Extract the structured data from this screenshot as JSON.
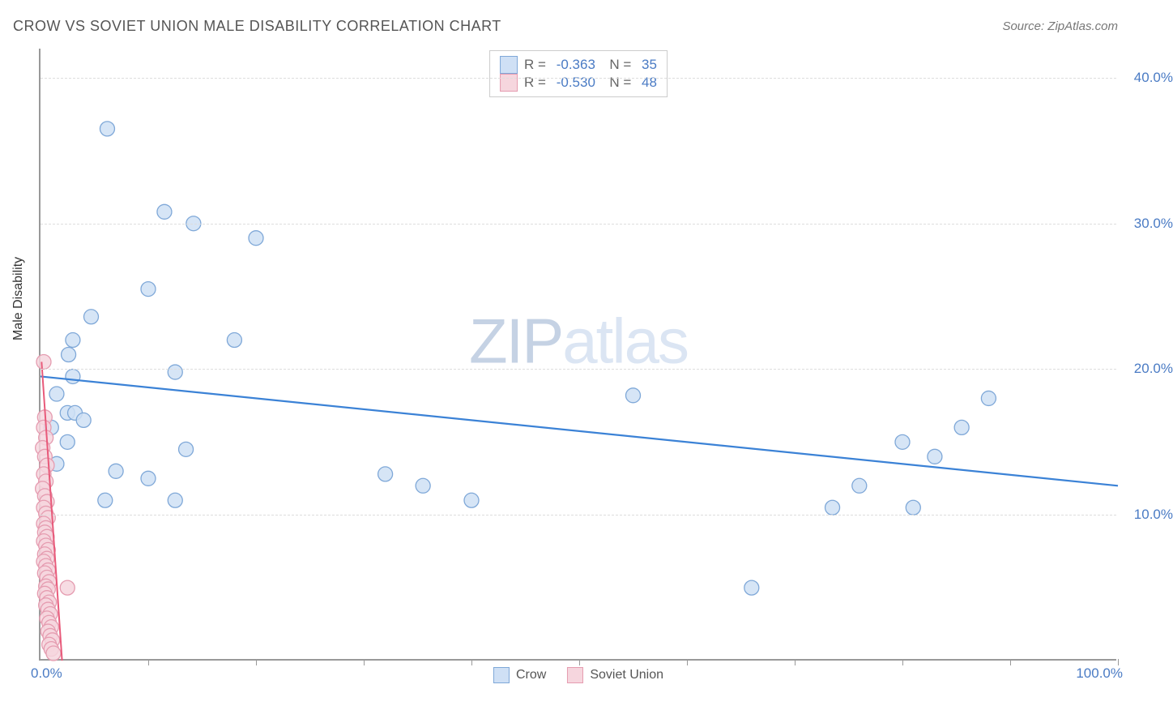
{
  "title": "CROW VS SOVIET UNION MALE DISABILITY CORRELATION CHART",
  "source": "Source: ZipAtlas.com",
  "watermark": {
    "left": "ZIP",
    "right": "atlas"
  },
  "ylabel": "Male Disability",
  "chart": {
    "type": "scatter",
    "xlim": [
      0,
      100
    ],
    "ylim": [
      0,
      42
    ],
    "yticks": [
      {
        "v": 10,
        "label": "10.0%"
      },
      {
        "v": 20,
        "label": "20.0%"
      },
      {
        "v": 30,
        "label": "30.0%"
      },
      {
        "v": 40,
        "label": "40.0%"
      }
    ],
    "xticks": [
      10,
      20,
      30,
      40,
      50,
      60,
      70,
      80,
      90,
      100
    ],
    "xlabel_min": "0.0%",
    "xlabel_max": "100.0%",
    "background_color": "#ffffff",
    "grid_color": "#dddddd",
    "series": [
      {
        "name": "Crow",
        "marker_fill": "#cfe0f5",
        "marker_stroke": "#7fa8d8",
        "marker_radius": 9,
        "line_color": "#3b82d6",
        "line_width": 2.2,
        "trend": {
          "x1": 0,
          "y1": 19.5,
          "x2": 100,
          "y2": 12.0
        },
        "R": "-0.363",
        "N": "35",
        "points": [
          [
            6.2,
            36.5
          ],
          [
            11.5,
            30.8
          ],
          [
            14.2,
            30.0
          ],
          [
            20.0,
            29.0
          ],
          [
            10.0,
            25.5
          ],
          [
            4.7,
            23.6
          ],
          [
            3.0,
            22.0
          ],
          [
            2.6,
            21.0
          ],
          [
            12.5,
            19.8
          ],
          [
            18.0,
            22.0
          ],
          [
            1.5,
            18.3
          ],
          [
            2.5,
            17.0
          ],
          [
            3.2,
            17.0
          ],
          [
            1.0,
            16.0
          ],
          [
            2.5,
            15.0
          ],
          [
            1.5,
            13.5
          ],
          [
            7.0,
            13.0
          ],
          [
            13.5,
            14.5
          ],
          [
            6.0,
            11.0
          ],
          [
            10.0,
            12.5
          ],
          [
            12.5,
            11.0
          ],
          [
            32.0,
            12.8
          ],
          [
            35.5,
            12.0
          ],
          [
            40.0,
            11.0
          ],
          [
            55.0,
            18.2
          ],
          [
            66.0,
            5.0
          ],
          [
            73.5,
            10.5
          ],
          [
            76.0,
            12.0
          ],
          [
            80.0,
            15.0
          ],
          [
            81.0,
            10.5
          ],
          [
            83.0,
            14.0
          ],
          [
            85.5,
            16.0
          ],
          [
            88.0,
            18.0
          ],
          [
            4.0,
            16.5
          ],
          [
            3.0,
            19.5
          ]
        ]
      },
      {
        "name": "Soviet Union",
        "marker_fill": "#f6d6de",
        "marker_stroke": "#e59cb0",
        "marker_radius": 9,
        "line_color": "#e85a7a",
        "line_width": 2.0,
        "trend": {
          "x1": 0.1,
          "y1": 20.5,
          "x2": 2.0,
          "y2": 0.0
        },
        "R": "-0.530",
        "N": "48",
        "points": [
          [
            0.3,
            20.5
          ],
          [
            0.4,
            16.7
          ],
          [
            0.3,
            16.0
          ],
          [
            0.5,
            15.3
          ],
          [
            0.2,
            14.6
          ],
          [
            0.4,
            14.0
          ],
          [
            0.6,
            13.4
          ],
          [
            0.3,
            12.8
          ],
          [
            0.5,
            12.3
          ],
          [
            0.2,
            11.8
          ],
          [
            0.4,
            11.3
          ],
          [
            0.6,
            10.9
          ],
          [
            0.3,
            10.5
          ],
          [
            0.5,
            10.1
          ],
          [
            0.7,
            9.8
          ],
          [
            0.3,
            9.4
          ],
          [
            0.5,
            9.1
          ],
          [
            0.4,
            8.8
          ],
          [
            0.6,
            8.5
          ],
          [
            0.3,
            8.2
          ],
          [
            0.5,
            7.9
          ],
          [
            0.7,
            7.6
          ],
          [
            0.4,
            7.3
          ],
          [
            0.6,
            7.0
          ],
          [
            0.3,
            6.8
          ],
          [
            0.5,
            6.5
          ],
          [
            0.7,
            6.2
          ],
          [
            0.4,
            6.0
          ],
          [
            0.6,
            5.7
          ],
          [
            0.8,
            5.4
          ],
          [
            0.5,
            5.1
          ],
          [
            0.7,
            4.9
          ],
          [
            0.4,
            4.6
          ],
          [
            0.6,
            4.3
          ],
          [
            0.8,
            4.0
          ],
          [
            0.5,
            3.8
          ],
          [
            0.7,
            3.5
          ],
          [
            0.9,
            3.2
          ],
          [
            0.6,
            2.9
          ],
          [
            0.8,
            2.6
          ],
          [
            1.0,
            2.3
          ],
          [
            0.7,
            2.0
          ],
          [
            0.9,
            1.7
          ],
          [
            1.1,
            1.4
          ],
          [
            0.8,
            1.1
          ],
          [
            1.0,
            0.8
          ],
          [
            1.2,
            0.5
          ],
          [
            2.5,
            5.0
          ]
        ]
      }
    ],
    "legend": {
      "items": [
        {
          "label": "Crow",
          "fill": "#cfe0f5",
          "stroke": "#7fa8d8"
        },
        {
          "label": "Soviet Union",
          "fill": "#f6d6de",
          "stroke": "#e59cb0"
        }
      ]
    }
  }
}
